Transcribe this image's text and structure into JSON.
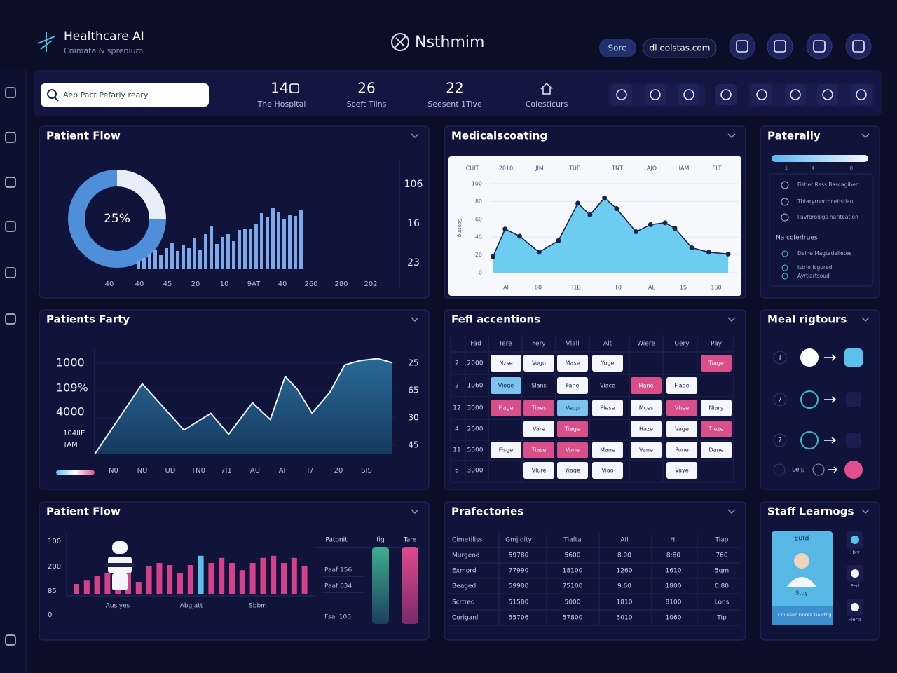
{
  "header": {
    "brand": "Healthcare AI",
    "tagline": "Cnimata & sprenium",
    "app_name": "Nsthmim",
    "buttons": [
      "Sore",
      "dl eolstas.com"
    ]
  },
  "search": {
    "placeholder": "Aep Pact Pefarly reary"
  },
  "stats": [
    {
      "value": "14.",
      "label": "The Hospital"
    },
    {
      "value": "26",
      "label": "Sceft Tlins"
    },
    {
      "value": "22",
      "label": "Seesent 1Tive"
    },
    {
      "label": "Colesticurs"
    }
  ],
  "panels": [
    "Patient Flow",
    "Medicalscoating",
    "Paterally",
    "Patients Farty",
    "Fefl accentions",
    "Meal rigtours",
    "Patient Flow",
    "Prafectories",
    "Staff Learnogs"
  ],
  "chart_data": [
    {
      "type": "pie",
      "values": [
        25
      ],
      "value_labels": [
        "25%"
      ],
      "colors": [
        "#e8eef8"
      ],
      "rest_color": "#4f8fd9"
    },
    {
      "type": "bar",
      "values": [
        12,
        16,
        22,
        28,
        20,
        30,
        38,
        26,
        34,
        30,
        44,
        28,
        50,
        62,
        36,
        46,
        50,
        40,
        56,
        58,
        58,
        64,
        80,
        74,
        88,
        82,
        72,
        78,
        76,
        84
      ],
      "ylim": [
        0,
        100
      ],
      "color": "#7fa8e8",
      "x_labels": [
        "40",
        "40",
        "45",
        "20",
        "10",
        "9AT",
        "40",
        "260",
        "280",
        "202"
      ],
      "right_labels": [
        "106",
        "16",
        "23"
      ]
    },
    {
      "type": "line",
      "x": [
        1,
        6,
        12,
        20,
        28,
        36,
        41,
        47,
        52,
        60,
        66,
        72,
        76,
        83,
        90,
        98
      ],
      "values": [
        18,
        49,
        41,
        23,
        36,
        78,
        65,
        84,
        72,
        46,
        54,
        56,
        50,
        28,
        23,
        21
      ],
      "xlim": [
        0,
        100
      ],
      "ylim": [
        0,
        100
      ],
      "yticks": [
        0,
        20,
        40,
        60,
        80,
        100
      ],
      "grid": true,
      "y_label": "Scoring",
      "color": "#1a2350",
      "fill": "#5ec8ef",
      "top_labels": [
        "CUIT",
        "2010",
        "JIM",
        "TUE",
        "TNT",
        "AJO",
        "IAM",
        "PLT"
      ],
      "bottom_labels": [
        "Al",
        "80",
        "TI1B",
        "T0",
        "AL",
        "1S",
        "1S0"
      ]
    },
    {
      "type": "area",
      "x": [
        0,
        16,
        30,
        39,
        45,
        53,
        59,
        64,
        68,
        73,
        79,
        84,
        89,
        95,
        100
      ],
      "values": [
        0,
        67,
        23,
        39,
        19,
        49,
        33,
        74,
        62,
        39,
        59,
        85,
        89,
        91,
        87
      ],
      "xlim": [
        0,
        100
      ],
      "ylim": [
        0,
        100
      ],
      "color": "#e9f0ff",
      "fill": "#1e4f78",
      "left_labels": [
        "1000",
        "109%",
        "4000",
        "104IIE",
        "TAM"
      ],
      "right_labels": [
        "25",
        "65",
        "30",
        "45"
      ],
      "x_labels": [
        "N0",
        "NU",
        "UD",
        "TN0",
        "7I1",
        "AU",
        "AF",
        "I7",
        "20",
        "SIS"
      ]
    },
    {
      "type": "bar",
      "values": [
        25,
        33,
        45,
        50,
        58,
        66,
        30,
        67,
        75,
        70,
        50,
        70,
        92,
        75,
        87,
        75,
        58,
        75,
        87,
        92,
        75,
        87,
        67
      ],
      "ylim": [
        0,
        100
      ],
      "colors": [
        "#d6418c",
        "#d6418c",
        "#d6418c",
        "#d6418c",
        "#d6418c",
        "#d6418c",
        "#d6418c",
        "#d6418c",
        "#d6418c",
        "#d6418c",
        "#d6418c",
        "#d6418c",
        "#5bc0eb",
        "#d6418c",
        "#d6418c",
        "#d6418c",
        "#d6418c",
        "#d6418c",
        "#d6418c",
        "#d6418c",
        "#d6418c",
        "#d6418c",
        "#d6418c"
      ],
      "left_labels": [
        "100",
        "200",
        "85",
        "0"
      ],
      "x_labels": [
        "Auslyes",
        "Abgjatt",
        "Sbbm"
      ],
      "legend": {
        "headers": [
          "Patonit",
          "fig",
          "Tare"
        ],
        "rows": [
          "Paaf 156",
          "Paaf 634",
          "Fsal 100"
        ]
      }
    }
  ],
  "flow_table": {
    "headers": [
      "Fad",
      "Iere",
      "Fery",
      "Vlall",
      "Alt",
      "Wiere",
      "Uery",
      "Pay"
    ],
    "rows": [
      {
        "num": "2",
        "code": "2000",
        "cells": [
          {
            "text": "Nzse",
            "tone": "w"
          },
          {
            "text": "Vogo",
            "tone": "w"
          },
          {
            "text": "Mase",
            "tone": "w"
          },
          {
            "text": "Yoge",
            "tone": "w"
          },
          null,
          null,
          {
            "text": "Tiage",
            "tone": "p"
          }
        ]
      },
      {
        "num": "2",
        "code": "1060",
        "cells": [
          {
            "text": "Vioge",
            "tone": "b"
          },
          {
            "text": "Slans",
            "tone": "d"
          },
          {
            "text": "Fane",
            "tone": "w"
          },
          {
            "text": "Viace",
            "tone": "d"
          },
          {
            "text": "Hane",
            "tone": "p"
          },
          {
            "text": "Fiage",
            "tone": "w"
          },
          null
        ]
      },
      {
        "num": "12",
        "code": "3000",
        "cells": [
          {
            "text": "Fiage",
            "tone": "p"
          },
          {
            "text": "Tiaes",
            "tone": "p"
          },
          {
            "text": "Veup",
            "tone": "b"
          },
          {
            "text": "Flese",
            "tone": "w"
          },
          {
            "text": "Mces",
            "tone": "w"
          },
          {
            "text": "Vhee",
            "tone": "p"
          },
          {
            "text": "Niary",
            "tone": "w"
          }
        ]
      },
      {
        "num": "4",
        "code": "2600",
        "cells": [
          null,
          {
            "text": "Vare",
            "tone": "w"
          },
          {
            "text": "Tiage",
            "tone": "p"
          },
          null,
          {
            "text": "Haze",
            "tone": "w"
          },
          {
            "text": "Vage",
            "tone": "w"
          },
          {
            "text": "Tieze",
            "tone": "p"
          }
        ]
      },
      {
        "num": "11",
        "code": "5000",
        "cells": [
          {
            "text": "Fisge",
            "tone": "w"
          },
          {
            "text": "Tiase",
            "tone": "p"
          },
          {
            "text": "Vone",
            "tone": "p"
          },
          {
            "text": "Mane",
            "tone": "w"
          },
          {
            "text": "Vane",
            "tone": "w"
          },
          {
            "text": "Pone",
            "tone": "w"
          },
          {
            "text": "Dane",
            "tone": "w"
          }
        ]
      },
      {
        "num": "6",
        "code": "3000",
        "cells": [
          null,
          {
            "text": "Vlure",
            "tone": "w"
          },
          {
            "text": "Yiage",
            "tone": "w"
          },
          {
            "text": "Viao",
            "tone": "w"
          },
          null,
          {
            "text": "Vaye",
            "tone": "w"
          },
          null
        ]
      }
    ]
  },
  "practice_table": {
    "headers": [
      "Cimetiliss",
      "Gmjidity",
      "Tiafta",
      "AII",
      "Hi",
      "Tiap"
    ],
    "rows": [
      [
        "Murgeod",
        "59780",
        "5600",
        "8.00",
        "8:80",
        "760"
      ],
      [
        "Exmord",
        "77990",
        "18100",
        "1260",
        "1610",
        "5qm"
      ],
      [
        "Beaged",
        "59980",
        "75100",
        "9.60",
        "1800",
        "0.80"
      ],
      [
        "Scrtred",
        "51580",
        "5000",
        "1810",
        "8100",
        "Lons"
      ],
      [
        "Coriganl",
        "55706",
        "57800",
        "5010",
        "1060",
        "Tip"
      ]
    ]
  },
  "side_list": {
    "scale": [
      "1",
      "4",
      "8"
    ],
    "items": [
      "Fisher Ress Bascagiber",
      "Thtaryrnorthcetistian",
      "Pavfbrologs hariteation"
    ],
    "section": "Na ccferlrues",
    "section_items": [
      "Delhe Magtadelietes",
      "Istrio Icgured",
      "Ayrtiartsoud"
    ]
  },
  "meal_routes": {
    "rows": [
      "1",
      "7",
      "7"
    ],
    "last": "Lelp"
  },
  "staff": {
    "card_title": "Eutd",
    "card_name": "Stuy",
    "card_footer": "Counsec Gores Tiaictng",
    "items": [
      "Hxy",
      "Fed",
      "Flerts"
    ]
  }
}
